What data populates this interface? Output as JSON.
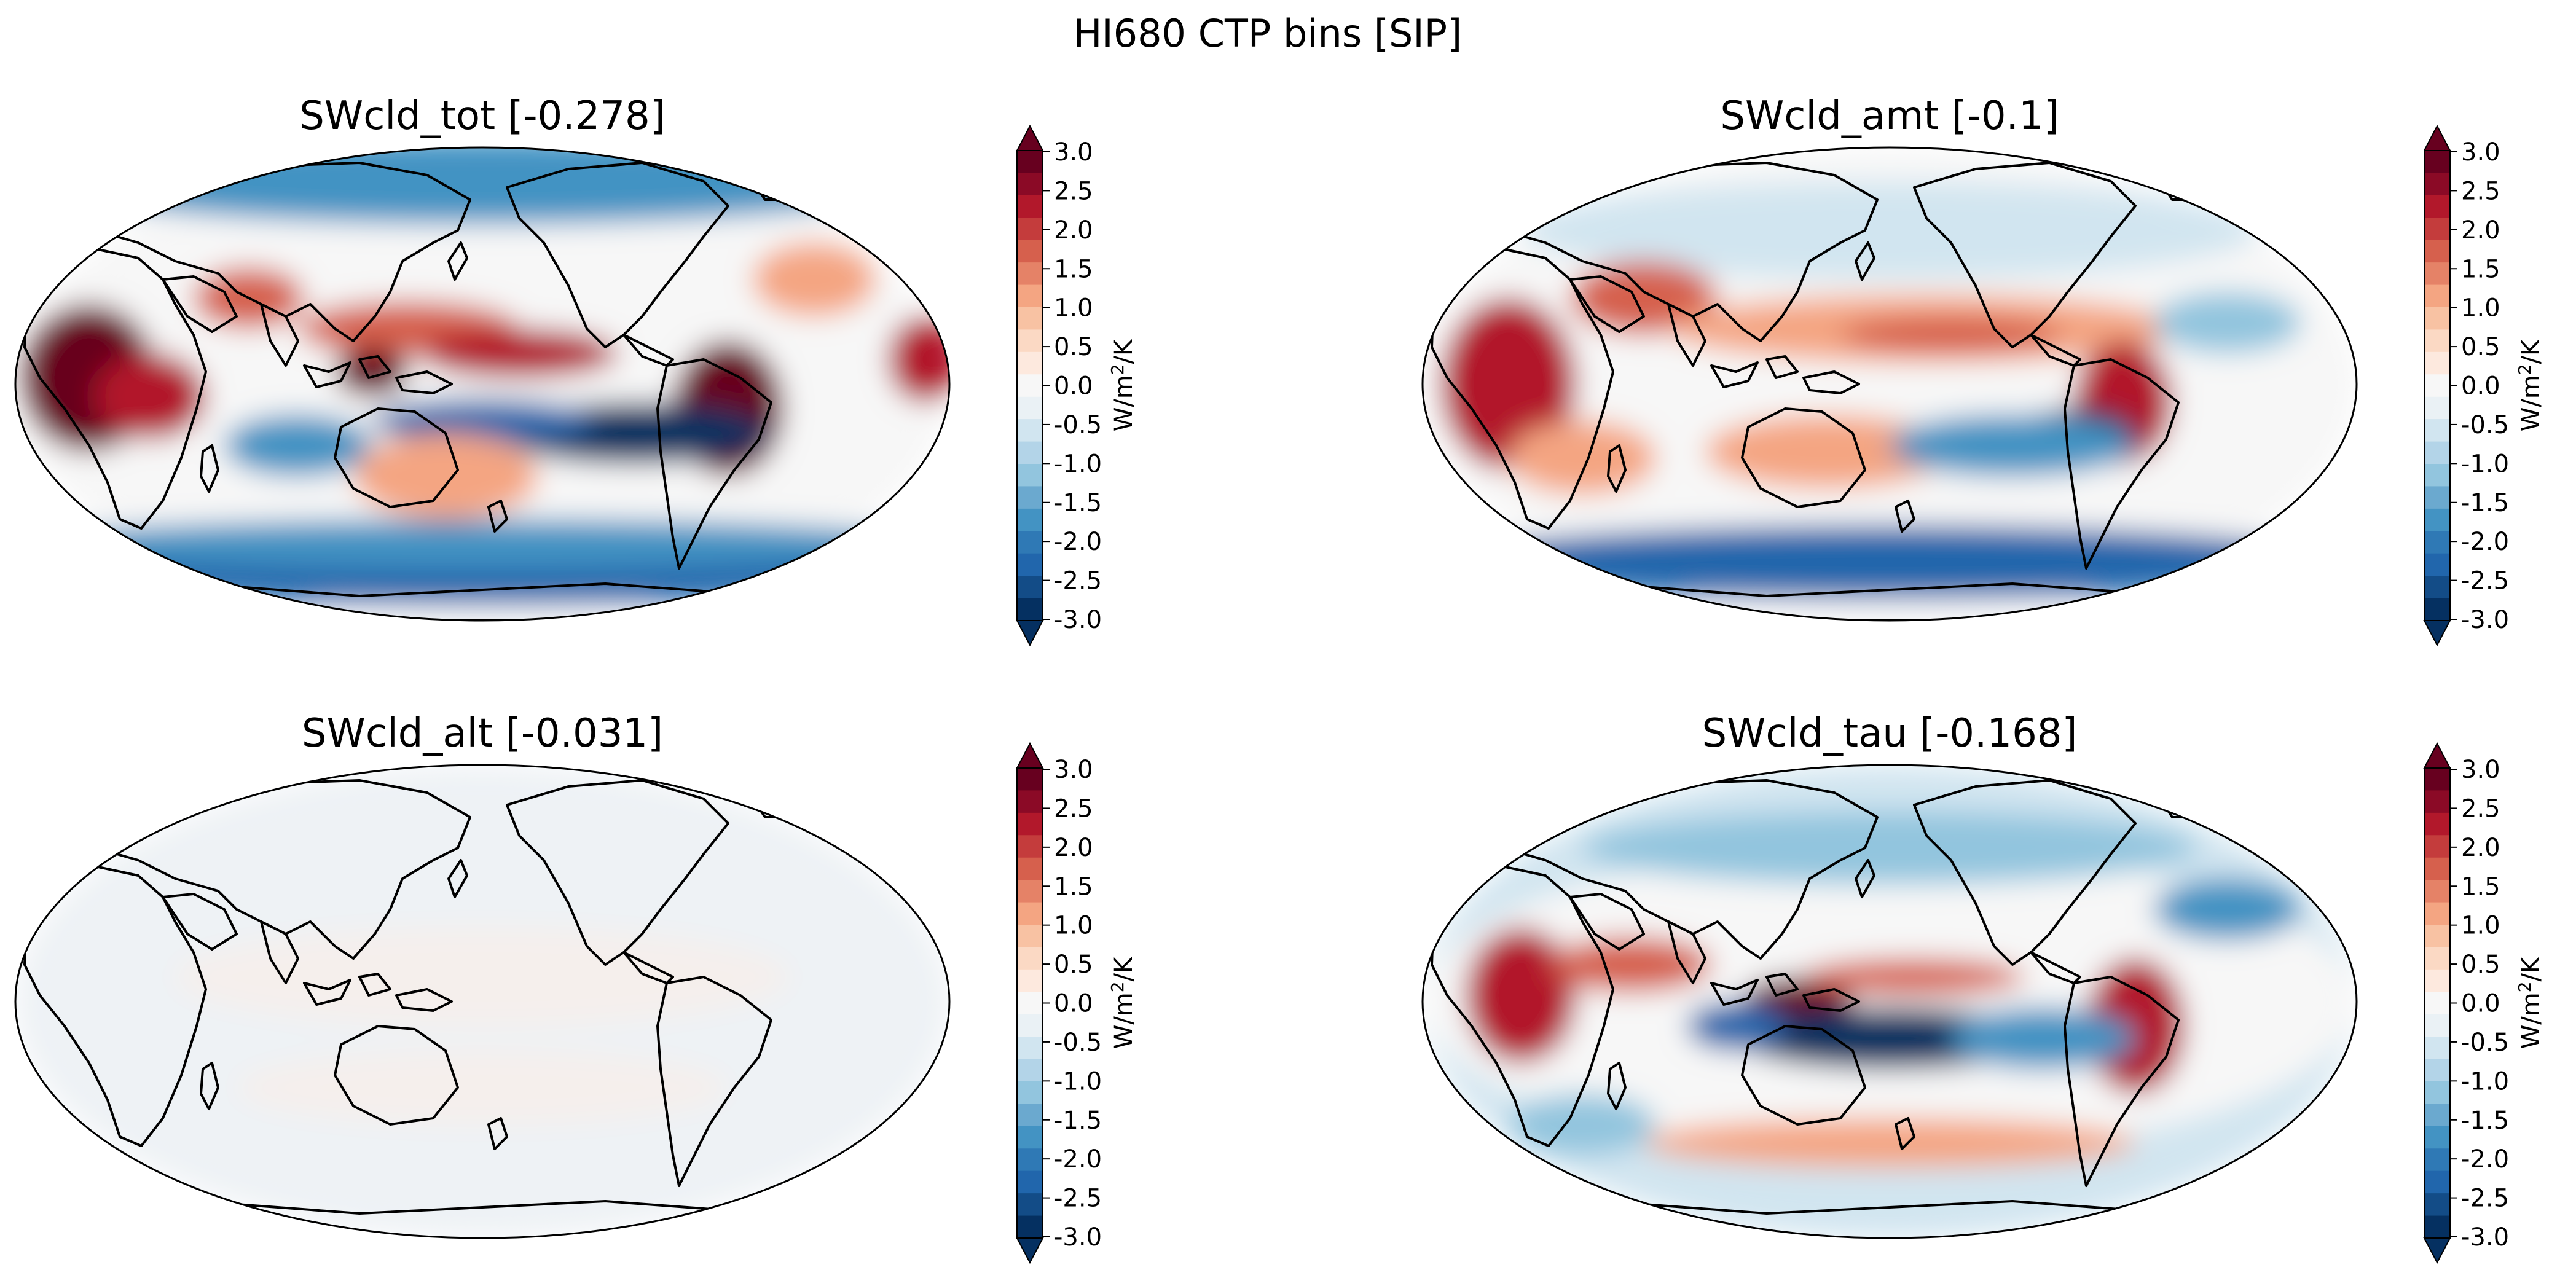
{
  "figure": {
    "title": "HI680 CTP bins [SIP]"
  },
  "colorbar": {
    "ticks": [
      "3.0",
      "2.5",
      "2.0",
      "1.5",
      "1.0",
      "0.5",
      "0.0",
      "-0.5",
      "-1.0",
      "-1.5",
      "-2.0",
      "-2.5",
      "-3.0"
    ],
    "label_base": "W/m",
    "label_sup": "2",
    "label_tail": "/K",
    "colors": [
      "#67001f",
      "#8b0a26",
      "#b2182b",
      "#c43c3c",
      "#d6604d",
      "#e58267",
      "#f4a582",
      "#f8c2a3",
      "#fbd9c4",
      "#fde9de",
      "#f7f7f7",
      "#eaf1f5",
      "#d1e5f0",
      "#b3d4e8",
      "#92c5de",
      "#6ba9cf",
      "#4393c3",
      "#2f79b5",
      "#2166ac",
      "#134c87",
      "#053061"
    ]
  },
  "panels": [
    {
      "title": "SWcld_tot [-0.278]",
      "field": "tot"
    },
    {
      "title": "SWcld_amt [-0.1]",
      "field": "amt"
    },
    {
      "title": "SWcld_alt [-0.031]",
      "field": "alt"
    },
    {
      "title": "SWcld_tau [-0.168]",
      "field": "tau"
    }
  ]
}
